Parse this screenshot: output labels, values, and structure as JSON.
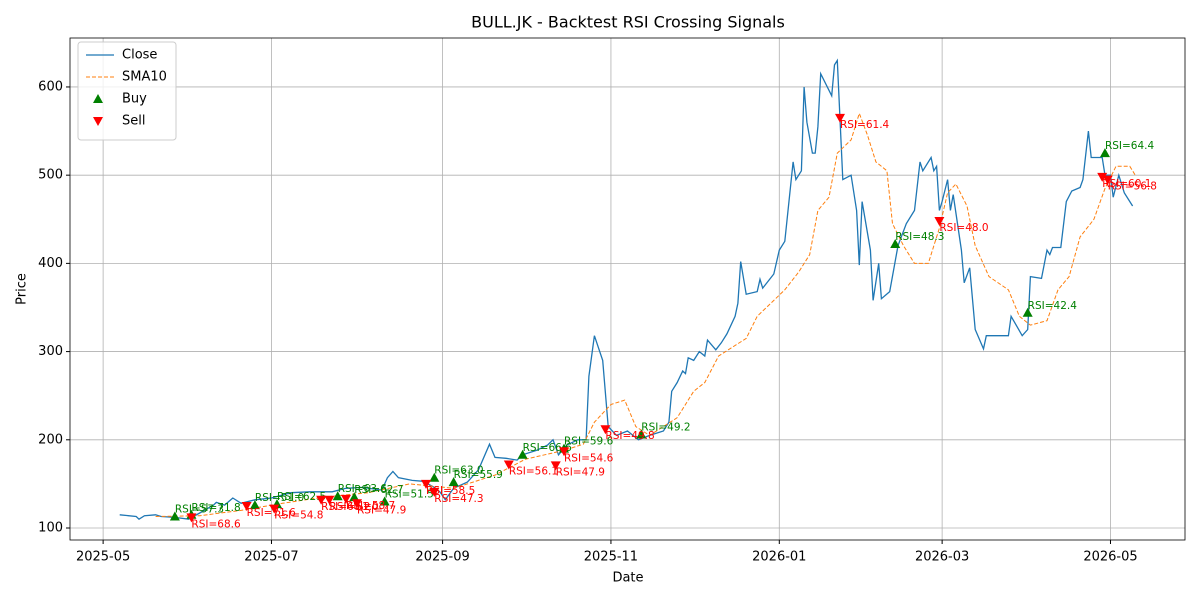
{
  "chart_data": {
    "type": "line",
    "title": "BULL.JK - Backtest RSI Crossing Signals",
    "xlabel": "Date",
    "ylabel": "Price",
    "xlim": [
      "2025-04-19",
      "2026-05-28"
    ],
    "ylim": [
      86.4,
      655.5
    ],
    "xticks": [
      {
        "value": "2025-05-01",
        "label": "2025-05"
      },
      {
        "value": "2025-07-01",
        "label": "2025-07"
      },
      {
        "value": "2025-09-01",
        "label": "2025-09"
      },
      {
        "value": "2025-11-01",
        "label": "2025-11"
      },
      {
        "value": "2026-01-01",
        "label": "2026-01"
      },
      {
        "value": "2026-03-01",
        "label": "2026-03"
      },
      {
        "value": "2026-05-01",
        "label": "2026-05"
      }
    ],
    "yticks": [
      100,
      200,
      300,
      400,
      500,
      600
    ],
    "grid": true,
    "legend": "upper left",
    "series": [
      {
        "name": "Close",
        "color": "#1f77b4",
        "style": "solid",
        "x": [
          "2025-05-07",
          "2025-05-13",
          "2025-05-14",
          "2025-05-16",
          "2025-05-20",
          "2025-05-22",
          "2025-05-27",
          "2025-06-01",
          "2025-06-05",
          "2025-06-10",
          "2025-06-11",
          "2025-06-14",
          "2025-06-17",
          "2025-06-20",
          "2025-06-25",
          "2025-07-01",
          "2025-07-08",
          "2025-07-15",
          "2025-07-23",
          "2025-07-28",
          "2025-08-03",
          "2025-08-10",
          "2025-08-12",
          "2025-08-14",
          "2025-08-16",
          "2025-08-21",
          "2025-08-25",
          "2025-08-29",
          "2025-08-31",
          "2025-09-02",
          "2025-09-05",
          "2025-09-10",
          "2025-09-14",
          "2025-09-18",
          "2025-09-20",
          "2025-09-24",
          "2025-09-28",
          "2025-09-30",
          "2025-10-05",
          "2025-10-09",
          "2025-10-11",
          "2025-10-13",
          "2025-10-16",
          "2025-10-20",
          "2025-10-23",
          "2025-10-24",
          "2025-10-26",
          "2025-10-29",
          "2025-10-31",
          "2025-11-03",
          "2025-11-07",
          "2025-11-11",
          "2025-11-15",
          "2025-11-20",
          "2025-11-22",
          "2025-11-23",
          "2025-11-25",
          "2025-11-27",
          "2025-11-28",
          "2025-11-29",
          "2025-12-01",
          "2025-12-03",
          "2025-12-05",
          "2025-12-06",
          "2025-12-09",
          "2025-12-11",
          "2025-12-13",
          "2025-12-16",
          "2025-12-17",
          "2025-12-18",
          "2025-12-20",
          "2025-12-24",
          "2025-12-25",
          "2025-12-26",
          "2025-12-30",
          "2026-01-01",
          "2026-01-03",
          "2026-01-06",
          "2026-01-07",
          "2026-01-09",
          "2026-01-10",
          "2026-01-11",
          "2026-01-13",
          "2026-01-14",
          "2026-01-15",
          "2026-01-16",
          "2026-01-20",
          "2026-01-21",
          "2026-01-22",
          "2026-01-24",
          "2026-01-27",
          "2026-01-29",
          "2026-01-30",
          "2026-01-31",
          "2026-02-03",
          "2026-02-04",
          "2026-02-06",
          "2026-02-07",
          "2026-02-10",
          "2026-02-13",
          "2026-02-16",
          "2026-02-19",
          "2026-02-21",
          "2026-02-22",
          "2026-02-25",
          "2026-02-26",
          "2026-02-27",
          "2026-02-28",
          "2026-03-01",
          "2026-03-03",
          "2026-03-04",
          "2026-03-05",
          "2026-03-08",
          "2026-03-09",
          "2026-03-11",
          "2026-03-13",
          "2026-03-16",
          "2026-03-17",
          "2026-03-25",
          "2026-03-26",
          "2026-03-30",
          "2026-04-01",
          "2026-04-02",
          "2026-04-06",
          "2026-04-08",
          "2026-04-09",
          "2026-04-10",
          "2026-04-13",
          "2026-04-15",
          "2026-04-17",
          "2026-04-20",
          "2026-04-21",
          "2026-04-23",
          "2026-04-24",
          "2026-04-28",
          "2026-04-29",
          "2026-05-01",
          "2026-05-02",
          "2026-05-04",
          "2026-05-06",
          "2026-05-09"
        ],
        "values": [
          115,
          113,
          110,
          114,
          115,
          113,
          112,
          110,
          117,
          126,
          129,
          126,
          134,
          128,
          132,
          134,
          140,
          141,
          141,
          145,
          146,
          143,
          157,
          164,
          157,
          154,
          153,
          146,
          141,
          132,
          145,
          152,
          166,
          195,
          180,
          179,
          177,
          183,
          188,
          194,
          200,
          183,
          194,
          200,
          200,
          272,
          318,
          290,
          215,
          205,
          210,
          200,
          205,
          210,
          220,
          255,
          265,
          278,
          275,
          293,
          290,
          300,
          295,
          313,
          302,
          310,
          320,
          340,
          355,
          402,
          365,
          368,
          382,
          372,
          388,
          415,
          425,
          515,
          495,
          505,
          600,
          560,
          525,
          525,
          555,
          615,
          590,
          625,
          630,
          495,
          500,
          460,
          398,
          470,
          415,
          358,
          400,
          360,
          368,
          420,
          445,
          460,
          515,
          505,
          520,
          505,
          510,
          460,
          470,
          495,
          460,
          478,
          415,
          378,
          395,
          325,
          303,
          318,
          318,
          340,
          318,
          325,
          385,
          383,
          415,
          410,
          418,
          418,
          470,
          482,
          486,
          495,
          550,
          520,
          520,
          500,
          500,
          475,
          500,
          480,
          465
        ]
      },
      {
        "name": "SMA10",
        "color": "#ff7f0e",
        "style": "dashed",
        "x": [
          "2025-05-20",
          "2025-06-05",
          "2025-06-20",
          "2025-07-05",
          "2025-07-20",
          "2025-08-05",
          "2025-08-20",
          "2025-09-05",
          "2025-09-20",
          "2025-10-01",
          "2025-10-15",
          "2025-10-22",
          "2025-10-26",
          "2025-11-01",
          "2025-11-06",
          "2025-11-10",
          "2025-11-15",
          "2025-11-25",
          "2025-12-01",
          "2025-12-05",
          "2025-12-10",
          "2025-12-20",
          "2025-12-24",
          "2025-12-29",
          "2026-01-03",
          "2026-01-08",
          "2026-01-12",
          "2026-01-15",
          "2026-01-19",
          "2026-01-22",
          "2026-01-27",
          "2026-01-30",
          "2026-02-02",
          "2026-02-05",
          "2026-02-09",
          "2026-02-11",
          "2026-02-15",
          "2026-02-19",
          "2026-02-24",
          "2026-02-28",
          "2026-03-03",
          "2026-03-06",
          "2026-03-10",
          "2026-03-13",
          "2026-03-18",
          "2026-03-25",
          "2026-03-29",
          "2026-04-02",
          "2026-04-08",
          "2026-04-12",
          "2026-04-16",
          "2026-04-20",
          "2026-04-25",
          "2026-04-29",
          "2026-05-03",
          "2026-05-08",
          "2026-05-10"
        ],
        "values": [
          113,
          114,
          120,
          128,
          135,
          140,
          150,
          145,
          160,
          178,
          188,
          195,
          220,
          240,
          245,
          215,
          205,
          225,
          255,
          265,
          295,
          315,
          340,
          355,
          370,
          390,
          410,
          460,
          475,
          525,
          540,
          570,
          545,
          515,
          505,
          445,
          420,
          400,
          400,
          440,
          480,
          490,
          465,
          420,
          385,
          370,
          340,
          330,
          335,
          370,
          385,
          430,
          450,
          485,
          510,
          510,
          500
        ]
      },
      {
        "name": "Buy",
        "color": "green",
        "style": "marker-up",
        "x": [
          "2025-05-27",
          "2025-06-02",
          "2025-06-25",
          "2025-07-03",
          "2025-07-25",
          "2025-07-31",
          "2025-08-11",
          "2025-08-29",
          "2025-09-05",
          "2025-09-30",
          "2025-10-15",
          "2025-11-12",
          "2026-02-12",
          "2026-04-01",
          "2026-04-29"
        ],
        "values": [
          113,
          115,
          126,
          127,
          136,
          135,
          130,
          157,
          152,
          183,
          190,
          206,
          422,
          344,
          525
        ],
        "labels": [
          "RSI=57.3",
          "RSI=71.8",
          "RSI=51.0",
          "RSI=62.5",
          "RSI=63.6",
          "RSI=62.7",
          "RSI=51.5",
          "RSI=63.0",
          "RSI=55.9",
          "RSI=66.6",
          "RSI=59.6",
          "RSI=49.2",
          "RSI=48.3",
          "RSI=42.4",
          "RSI=64.4"
        ]
      },
      {
        "name": "Sell",
        "color": "red",
        "style": "marker-down",
        "x": [
          "2025-06-02",
          "2025-06-22",
          "2025-07-02",
          "2025-07-19",
          "2025-07-22",
          "2025-07-28",
          "2025-08-01",
          "2025-08-26",
          "2025-08-29",
          "2025-09-25",
          "2025-10-12",
          "2025-10-15",
          "2025-10-30",
          "2026-01-23",
          "2026-02-28",
          "2026-04-28",
          "2026-04-30"
        ],
        "values": [
          112,
          125,
          122,
          132,
          132,
          133,
          128,
          150,
          141,
          172,
          171,
          187,
          212,
          565,
          448,
          498,
          495
        ],
        "labels": [
          "RSI=68.6",
          "RSI=71.6",
          "RSI=54.8",
          "RSI=60.2",
          "RSI=61.0",
          "RSI=58.7",
          "RSI=47.9",
          "RSI=58.5",
          "RSI=47.3",
          "RSI=56.1",
          "RSI=47.9",
          "RSI=54.6",
          "RSI=49.8",
          "RSI=61.4",
          "RSI=48.0",
          "RSI=60.1",
          "RSI=56.8"
        ]
      }
    ]
  }
}
